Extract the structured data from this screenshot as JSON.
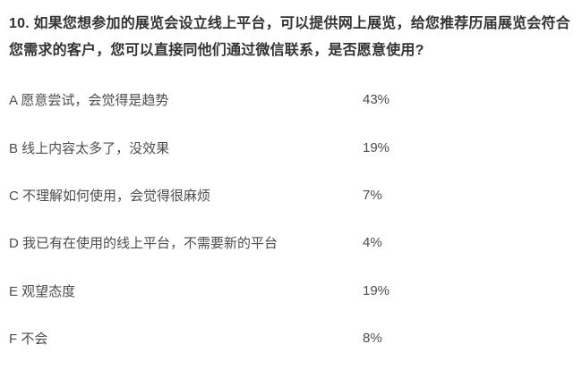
{
  "question": {
    "title": "10. 如果您想参加的展览会设立线上平台，可以提供网上展览，给您推荐历届展览会符合您需求的客户，您可以直接同他们通过微信联系，是否愿意使用?"
  },
  "options": [
    {
      "label": "A 愿意尝试，会觉得是趋势",
      "value": "43%"
    },
    {
      "label": "B 线上内容太多了，没效果",
      "value": "19%"
    },
    {
      "label": "C 不理解如何使用，会觉得很麻烦",
      "value": "7%"
    },
    {
      "label": "D 我已有在使用的线上平台，不需要新的平台",
      "value": "4%"
    },
    {
      "label": "E 观望态度",
      "value": "19%"
    },
    {
      "label": "F 不会",
      "value": "8%"
    }
  ],
  "colors": {
    "background": "#ffffff",
    "title_text": "#333333",
    "option_text": "#4d4d4d"
  }
}
